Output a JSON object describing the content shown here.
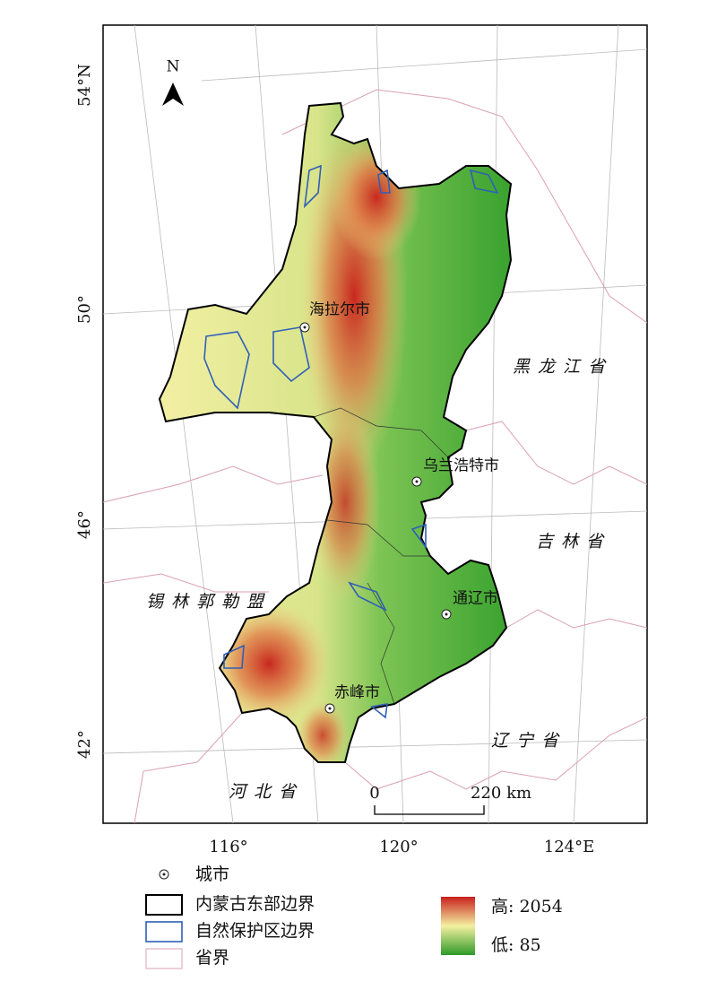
{
  "north_arrow": "N",
  "latitude_labels": [
    "54°N",
    "50°",
    "46°",
    "42°"
  ],
  "longitude_labels": [
    "116°",
    "120°",
    "124°E"
  ],
  "cities": [
    "海拉尔市",
    "乌兰浩特市",
    "通辽市",
    "赤峰市"
  ],
  "regions": [
    "黑龙江省",
    "吉林省",
    "锡林郭勒盟",
    "辽宁省",
    "河北省"
  ],
  "scale_bar": {
    "start": "0",
    "end": "220 km"
  },
  "legend": {
    "items": [
      "城市",
      "内蒙古东部边界",
      "自然保护区边界",
      "省界"
    ],
    "elevation": {
      "high": "高: 2054",
      "low": "低: 85"
    }
  }
}
